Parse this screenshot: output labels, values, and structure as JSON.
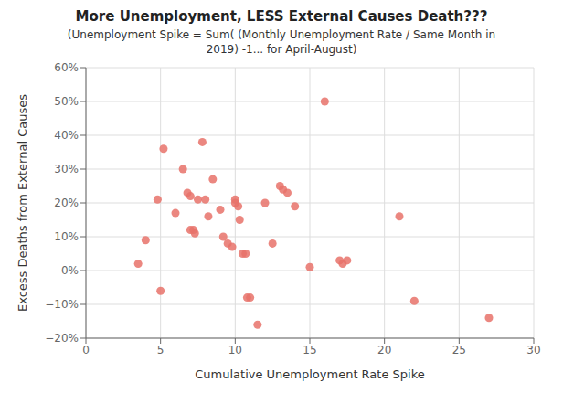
{
  "chart_data": {
    "type": "scatter",
    "title": "More Unemployment, LESS External Causes Death???",
    "subtitle": "(Unemployment Spike = Sum( (Monthly Unemployment Rate / Same Month in\n2019) -1... for April-August)",
    "xlabel": "Cumulative Unemployment Rate Spike",
    "ylabel": "Excess Deaths from External Causes",
    "xlim": [
      0,
      30
    ],
    "ylim": [
      -0.2,
      0.6
    ],
    "xticks": [
      0,
      5,
      10,
      15,
      20,
      25,
      30
    ],
    "yticks": [
      {
        "value": -0.2,
        "label": "−20%"
      },
      {
        "value": -0.1,
        "label": "−10%"
      },
      {
        "value": 0.0,
        "label": "0%"
      },
      {
        "value": 0.1,
        "label": "10%"
      },
      {
        "value": 0.2,
        "label": "20%"
      },
      {
        "value": 0.3,
        "label": "30%"
      },
      {
        "value": 0.4,
        "label": "40%"
      },
      {
        "value": 0.5,
        "label": "50%"
      },
      {
        "value": 0.6,
        "label": "60%"
      }
    ],
    "x": [
      3.5,
      4.0,
      4.8,
      5.0,
      5.2,
      6.0,
      6.5,
      6.8,
      7.0,
      7.0,
      7.2,
      7.3,
      7.5,
      7.8,
      8.0,
      8.2,
      8.5,
      9.0,
      9.2,
      9.5,
      9.8,
      10.0,
      10.0,
      10.2,
      10.3,
      10.5,
      10.7,
      10.8,
      11.0,
      11.5,
      12.0,
      12.5,
      13.0,
      13.2,
      13.5,
      14.0,
      15.0,
      16.0,
      17.0,
      17.2,
      17.5,
      21.0,
      22.0,
      27.0
    ],
    "values": [
      0.02,
      0.09,
      0.21,
      -0.06,
      0.36,
      0.17,
      0.3,
      0.23,
      0.22,
      0.12,
      0.12,
      0.11,
      0.21,
      0.38,
      0.21,
      0.16,
      0.27,
      0.18,
      0.1,
      0.08,
      0.07,
      0.21,
      0.2,
      0.19,
      0.15,
      0.05,
      0.05,
      -0.08,
      -0.08,
      -0.16,
      0.2,
      0.08,
      0.25,
      0.24,
      0.23,
      0.19,
      0.01,
      0.5,
      0.03,
      0.02,
      0.03,
      0.16,
      -0.09,
      -0.14
    ],
    "color": "#e8726a",
    "grid": true
  }
}
